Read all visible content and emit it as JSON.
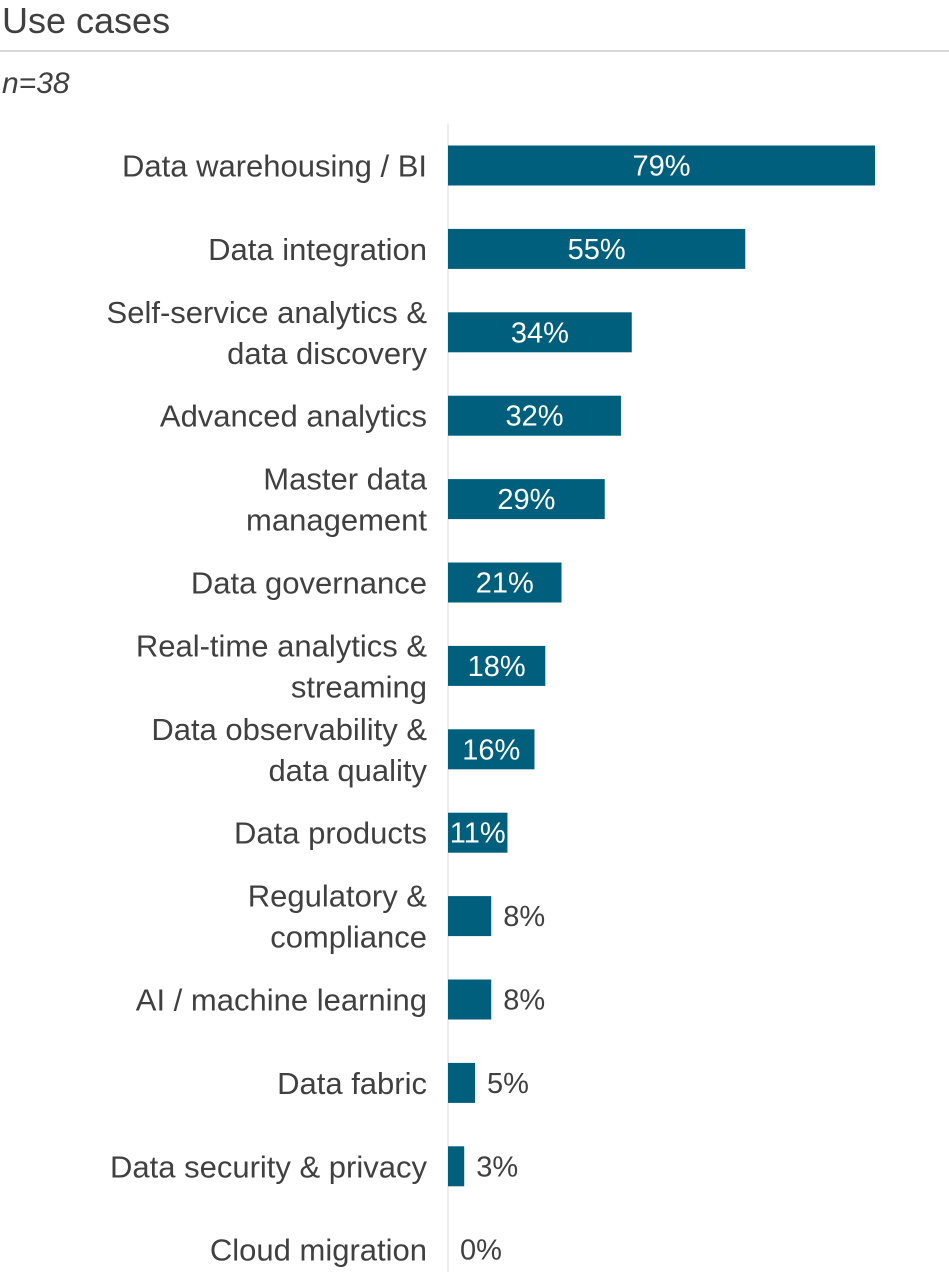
{
  "header": {
    "title": "Use cases",
    "subtitle": "n=38"
  },
  "colors": {
    "bar": "#005f7d",
    "label_text": "#404040",
    "inside_value_text": "#ffffff",
    "axis_line": "#d9d9d9"
  },
  "chart_data": {
    "type": "bar",
    "orientation": "horizontal",
    "title": "Use cases",
    "subtitle": "n=38",
    "value_suffix": "%",
    "xlim": [
      0,
      79
    ],
    "grid": false,
    "legend": "none",
    "categories": [
      [
        "Data warehousing / BI"
      ],
      [
        "Data integration"
      ],
      [
        "Self-service analytics &",
        "data discovery"
      ],
      [
        "Advanced analytics"
      ],
      [
        "Master data",
        "management"
      ],
      [
        "Data governance"
      ],
      [
        "Real-time analytics &",
        "streaming"
      ],
      [
        "Data observability &",
        "data quality"
      ],
      [
        "Data products"
      ],
      [
        "Regulatory &",
        "compliance"
      ],
      [
        "AI / machine learning"
      ],
      [
        "Data fabric"
      ],
      [
        "Data security & privacy"
      ],
      [
        "Cloud migration"
      ]
    ],
    "values": [
      79,
      55,
      34,
      32,
      29,
      21,
      18,
      16,
      11,
      8,
      8,
      5,
      3,
      0
    ]
  }
}
